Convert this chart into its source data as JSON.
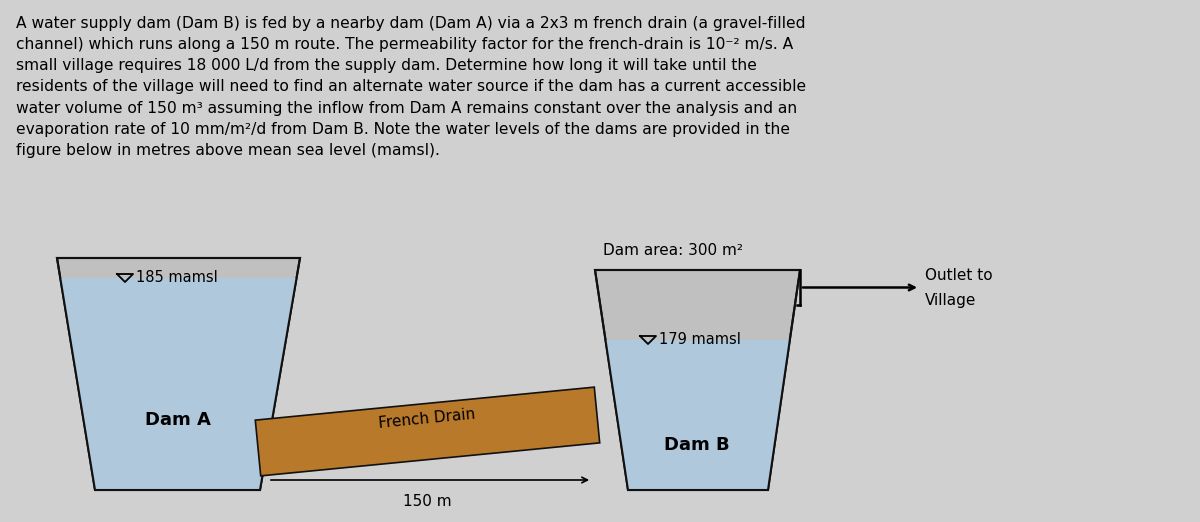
{
  "bg_color": "#d0d0d0",
  "text_color": "#000000",
  "water_color_a": "#b0c8dc",
  "water_color_b": "#b0c8dc",
  "dam_wall_color": "#c0c0c0",
  "french_drain_color": "#b8792a",
  "dam_outline_color": "#111111",
  "paragraph_lines": [
    "A water supply dam (Dam B) is fed by a nearby dam (Dam A) via a 2x3 m french drain (a gravel-filled",
    "channel) which runs along a 150 m route. The permeability factor for the french-drain is 10⁻² m/s. A",
    "small village requires 18 000 L/d from the supply dam. Determine how long it will take until the",
    "residents of the village will need to find an alternate water source if the dam has a current accessible",
    "water volume of 150 m³ assuming the inflow from Dam A remains constant over the analysis and an",
    "evaporation rate of 10 mm/m²/d from Dam B. Note the water levels of the dams are provided in the",
    "figure below in metres above mean sea level (mamsl)."
  ],
  "dam_a_label": "Dam A",
  "dam_b_label": "Dam B",
  "dam_a_level_label": "185 mamsl",
  "dam_b_level_label": "179 mamsl",
  "dam_b_area_label": "Dam area: 300 m²",
  "french_drain_label": "French Drain",
  "length_label": "150 m",
  "outlet_label_line1": "Outlet to",
  "outlet_label_line2": "Village",
  "fig_width": 12.0,
  "fig_height": 5.22,
  "dpi": 100
}
